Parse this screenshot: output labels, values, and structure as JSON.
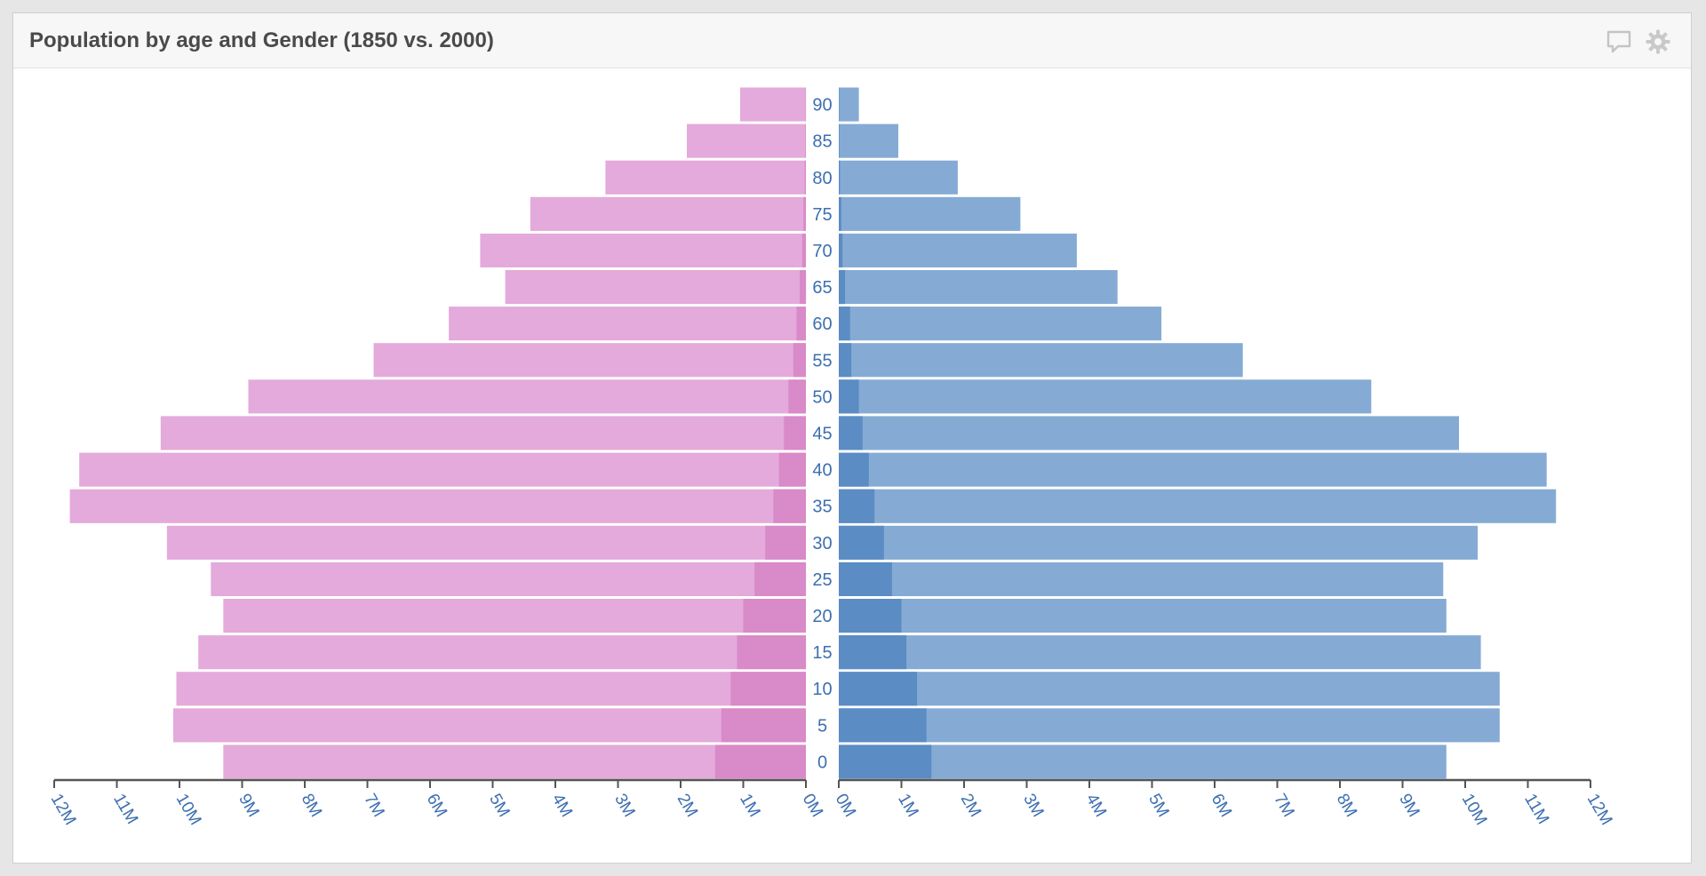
{
  "panel": {
    "title": "Population by age and Gender (1850 vs. 2000)",
    "icons": [
      "comment-icon",
      "gear-icon"
    ]
  },
  "colors": {
    "female": "#e3aadb",
    "female_overlay": "#d98ac8",
    "male": "#85abd4",
    "male_overlay": "#5b8cc4",
    "axis": "#555555",
    "label": "#3d6fb0"
  },
  "chart_data": {
    "type": "bar",
    "orientation": "horizontal",
    "layout": "population-pyramid",
    "title": "Population by age and Gender (1850 vs. 2000)",
    "categories": [
      0,
      5,
      10,
      15,
      20,
      25,
      30,
      35,
      40,
      45,
      50,
      55,
      60,
      65,
      70,
      75,
      80,
      85,
      90
    ],
    "unit": "M",
    "xlim": [
      0,
      12
    ],
    "tick_labels": [
      "0M",
      "1M",
      "2M",
      "3M",
      "4M",
      "5M",
      "6M",
      "7M",
      "8M",
      "9M",
      "10M",
      "11M",
      "12M"
    ],
    "series": [
      {
        "side": "left",
        "year": 2000,
        "values": [
          9.3,
          10.1,
          10.05,
          9.7,
          9.3,
          9.5,
          10.2,
          11.75,
          11.6,
          10.3,
          8.9,
          6.9,
          5.7,
          4.8,
          5.2,
          4.4,
          3.2,
          1.9,
          1.05
        ]
      },
      {
        "side": "left",
        "year": 1850,
        "values": [
          1.45,
          1.35,
          1.2,
          1.1,
          1.0,
          0.82,
          0.65,
          0.52,
          0.43,
          0.35,
          0.28,
          0.2,
          0.15,
          0.1,
          0.06,
          0.04,
          0.02,
          0.01,
          0.005
        ]
      },
      {
        "side": "right",
        "year": 2000,
        "values": [
          9.7,
          10.55,
          10.55,
          10.25,
          9.7,
          9.65,
          10.2,
          11.45,
          11.3,
          9.9,
          8.5,
          6.45,
          5.15,
          4.45,
          3.8,
          2.9,
          1.9,
          0.95,
          0.32
        ]
      },
      {
        "side": "right",
        "year": 1850,
        "values": [
          1.48,
          1.4,
          1.25,
          1.08,
          1.0,
          0.85,
          0.72,
          0.57,
          0.48,
          0.38,
          0.32,
          0.2,
          0.18,
          0.1,
          0.06,
          0.04,
          0.02,
          0.01,
          0.005
        ]
      }
    ]
  }
}
